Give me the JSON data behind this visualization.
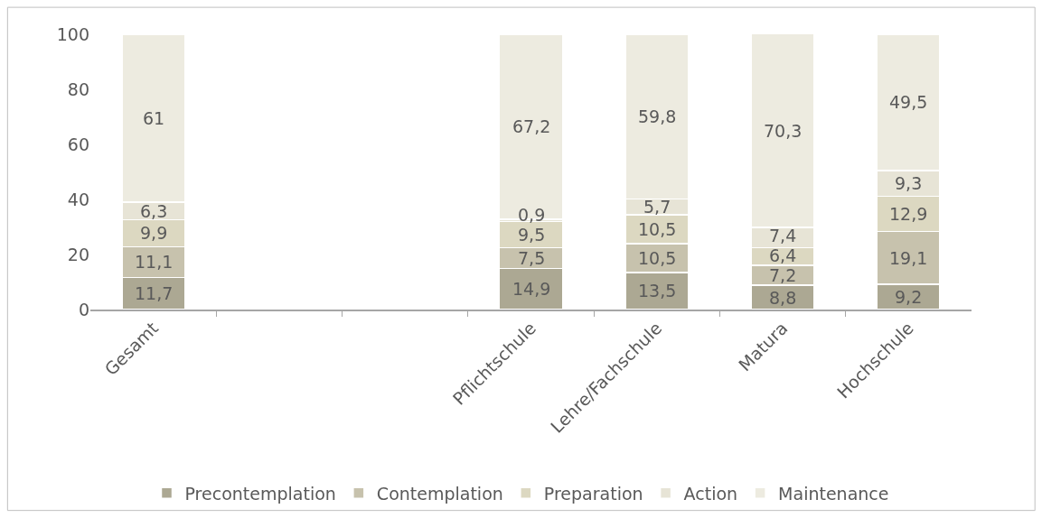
{
  "chart_data": {
    "type": "bar",
    "stacked": true,
    "categories": [
      "Gesamt",
      null,
      null,
      "Pflichtschule",
      "Lehre/Fachschule",
      "Matura",
      "Hochschule"
    ],
    "series": [
      {
        "name": "Precontemplation",
        "color": "#aca893",
        "values": [
          11.7,
          null,
          null,
          14.9,
          13.5,
          8.8,
          9.2
        ],
        "value_labels": [
          "11,7",
          null,
          null,
          "14,9",
          "13,5",
          "8,8",
          "9,2"
        ]
      },
      {
        "name": "Contemplation",
        "color": "#c7c2ad",
        "values": [
          11.1,
          null,
          null,
          7.5,
          10.5,
          7.2,
          19.1
        ],
        "value_labels": [
          "11,1",
          null,
          null,
          "7,5",
          "10,5",
          "7,2",
          "19,1"
        ]
      },
      {
        "name": "Preparation",
        "color": "#dcd8c1",
        "values": [
          9.9,
          null,
          null,
          9.5,
          10.5,
          6.4,
          12.9
        ],
        "value_labels": [
          "9,9",
          null,
          null,
          "9,5",
          "10,5",
          "6,4",
          "12,9"
        ]
      },
      {
        "name": "Action",
        "color": "#e7e4d6",
        "values": [
          6.3,
          null,
          null,
          0.9,
          5.7,
          7.4,
          9.3
        ],
        "value_labels": [
          "6,3",
          null,
          null,
          "0,9",
          "5,7",
          "7,4",
          "9,3"
        ]
      },
      {
        "name": "Maintenance",
        "color": "#edebe0",
        "values": [
          61,
          null,
          null,
          67.2,
          59.8,
          70.3,
          49.5
        ],
        "value_labels": [
          "61",
          null,
          null,
          "67,2",
          "59,8",
          "70,3",
          "49,5"
        ]
      }
    ],
    "ylim": [
      0,
      100
    ],
    "yticks": [
      0,
      20,
      40,
      60,
      80,
      100
    ],
    "grid": false,
    "legend": "bottom"
  }
}
